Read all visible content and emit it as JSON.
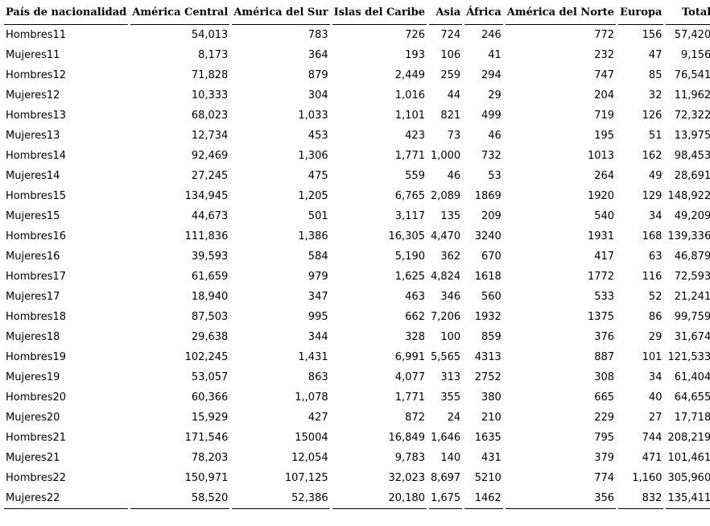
{
  "table": {
    "headers": [
      "País de nacionalidad",
      "América Central",
      "América del Sur",
      "Islas del Caribe",
      "Asia",
      "África",
      "América del Norte",
      "Europa",
      "Total"
    ],
    "rows": [
      [
        "Hombres11",
        "54,013",
        "783",
        "726",
        "724",
        "246",
        "772",
        "156",
        "57,420"
      ],
      [
        "Mujeres11",
        "8,173",
        "364",
        "193",
        "106",
        "41",
        "232",
        "47",
        "9,156"
      ],
      [
        "Hombres12",
        "71,828",
        "879",
        "2,449",
        "259",
        "294",
        "747",
        "85",
        "76,541"
      ],
      [
        "Mujeres12",
        "10,333",
        "304",
        "1,016",
        "44",
        "29",
        "204",
        "32",
        "11,962"
      ],
      [
        "Hombres13",
        "68,023",
        "1,033",
        "1,101",
        "821",
        "499",
        "719",
        "126",
        "72,322"
      ],
      [
        "Mujeres13",
        "12,734",
        "453",
        "423",
        "73",
        "46",
        "195",
        "51",
        "13,975"
      ],
      [
        "Hombres14",
        "92,469",
        "1,306",
        "1,771",
        "1,000",
        "732",
        "1013",
        "162",
        "98,453"
      ],
      [
        "Mujeres14",
        "27,245",
        "475",
        "559",
        "46",
        "53",
        "264",
        "49",
        "28,691"
      ],
      [
        "Hombres15",
        "134,945",
        "1,205",
        "6,765",
        "2,089",
        "1869",
        "1920",
        "129",
        "148,922"
      ],
      [
        "Mujeres15",
        "44,673",
        "501",
        "3,117",
        "135",
        "209",
        "540",
        "34",
        "49,209"
      ],
      [
        "Hombres16",
        "111,836",
        "1,386",
        "16,305",
        "4,470",
        "3240",
        "1931",
        "168",
        "139,336"
      ],
      [
        "Mujeres16",
        "39,593",
        "584",
        "5,190",
        "362",
        "670",
        "417",
        "63",
        "46,879"
      ],
      [
        "Hombres17",
        "61,659",
        "979",
        "1,625",
        "4,824",
        "1618",
        "1772",
        "116",
        "72,593"
      ],
      [
        "Mujeres17",
        "18,940",
        "347",
        "463",
        "346",
        "560",
        "533",
        "52",
        "21,241"
      ],
      [
        "Hombres18",
        "87,503",
        "995",
        "662",
        "7,206",
        "1932",
        "1375",
        "86",
        "99,759"
      ],
      [
        "Mujeres18",
        "29,638",
        "344",
        "328",
        "100",
        "859",
        "376",
        "29",
        "31,674"
      ],
      [
        "Hombres19",
        "102,245",
        "1,431",
        "6,991",
        "5,565",
        "4313",
        "887",
        "101",
        "121,533"
      ],
      [
        "Mujeres19",
        "53,057",
        "863",
        "4,077",
        "313",
        "2752",
        "308",
        "34",
        "61,404"
      ],
      [
        "Hombres20",
        "60,366",
        "1,,078",
        "1,771",
        "355",
        "380",
        "665",
        "40",
        "64,655"
      ],
      [
        "Mujeres20",
        "15,929",
        "427",
        "872",
        "24",
        "210",
        "229",
        "27",
        "17,718"
      ],
      [
        "Hombres21",
        "171,546",
        "15004",
        "16,849",
        "1,646",
        "1635",
        "795",
        "744",
        "208,219"
      ],
      [
        "Mujeres21",
        "78,203",
        "12,054",
        "9,783",
        "140",
        "431",
        "379",
        "471",
        "101,461"
      ],
      [
        "Hombres22",
        "150,971",
        "107,125",
        "32,023",
        "8,697",
        "5210",
        "774",
        "1,160",
        "305,960"
      ],
      [
        "Mujeres22",
        "58,520",
        "52,386",
        "20,180",
        "1,675",
        "1462",
        "356",
        "832",
        "135,411"
      ]
    ]
  }
}
